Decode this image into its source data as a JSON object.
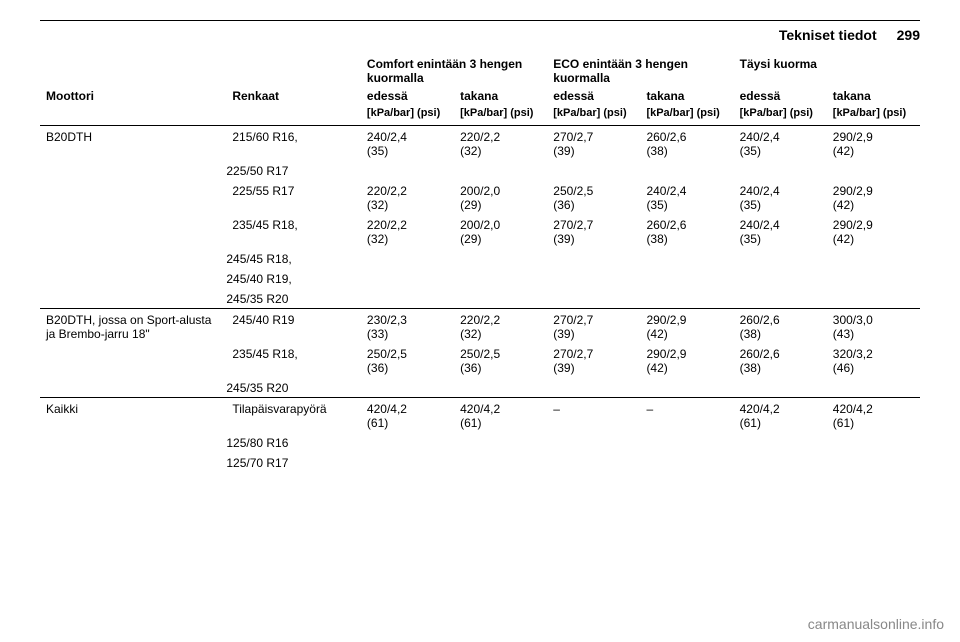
{
  "header": {
    "section": "Tekniset tiedot",
    "page_num": "299"
  },
  "cols": {
    "engine": "Moottori",
    "tires": "Renkaat",
    "comfort": "Comfort enintään 3 hengen kuormalla",
    "eco": "ECO enintään 3 hengen kuormalla",
    "full": "Täysi kuorma",
    "front": "edessä",
    "rear": "takana",
    "unit": "[kPa/bar] (psi)"
  },
  "rows": [
    {
      "engine": "B20DTH",
      "tire_main": "215/60 R16,",
      "tire_subs": [
        "225/50 R17"
      ],
      "v": [
        "240/2,4 (35)",
        "220/2,2 (32)",
        "270/2,7 (39)",
        "260/2,6 (38)",
        "240/2,4 (35)",
        "290/2,9 (42)"
      ]
    },
    {
      "engine": "",
      "tire_main": "225/55 R17",
      "tire_subs": [],
      "v": [
        "220/2,2 (32)",
        "200/2,0 (29)",
        "250/2,5 (36)",
        "240/2,4 (35)",
        "240/2,4 (35)",
        "290/2,9 (42)"
      ]
    },
    {
      "engine": "",
      "tire_main": "235/45 R18,",
      "tire_subs": [
        "245/45 R18,",
        "245/40 R19,",
        "245/35 R20"
      ],
      "v": [
        "220/2,2 (32)",
        "200/2,0 (29)",
        "270/2,7 (39)",
        "260/2,6 (38)",
        "240/2,4 (35)",
        "290/2,9 (42)"
      ]
    },
    {
      "divider": true,
      "engine": "B20DTH, jossa on Sport-alusta ja Brembo-jarru 18\"",
      "tire_main": "245/40 R19",
      "tire_subs": [],
      "v": [
        "230/2,3 (33)",
        "220/2,2 (32)",
        "270/2,7 (39)",
        "290/2,9 (42)",
        "260/2,6 (38)",
        "300/3,0 (43)"
      ]
    },
    {
      "engine": "",
      "tire_main": "235/45 R18,",
      "tire_subs": [
        "245/35 R20"
      ],
      "v": [
        "250/2,5 (36)",
        "250/2,5 (36)",
        "270/2,7 (39)",
        "290/2,9 (42)",
        "260/2,6 (38)",
        "320/3,2 (46)"
      ]
    },
    {
      "divider": true,
      "engine": "Kaikki",
      "tire_main": "Tilapäisvarapyörä",
      "tire_subs": [
        "125/80 R16",
        "125/70 R17"
      ],
      "v": [
        "420/4,2 (61)",
        "420/4,2 (61)",
        "–",
        "–",
        "420/4,2 (61)",
        "420/4,2 (61)"
      ]
    }
  ],
  "watermark": "carmanualsonline.info"
}
